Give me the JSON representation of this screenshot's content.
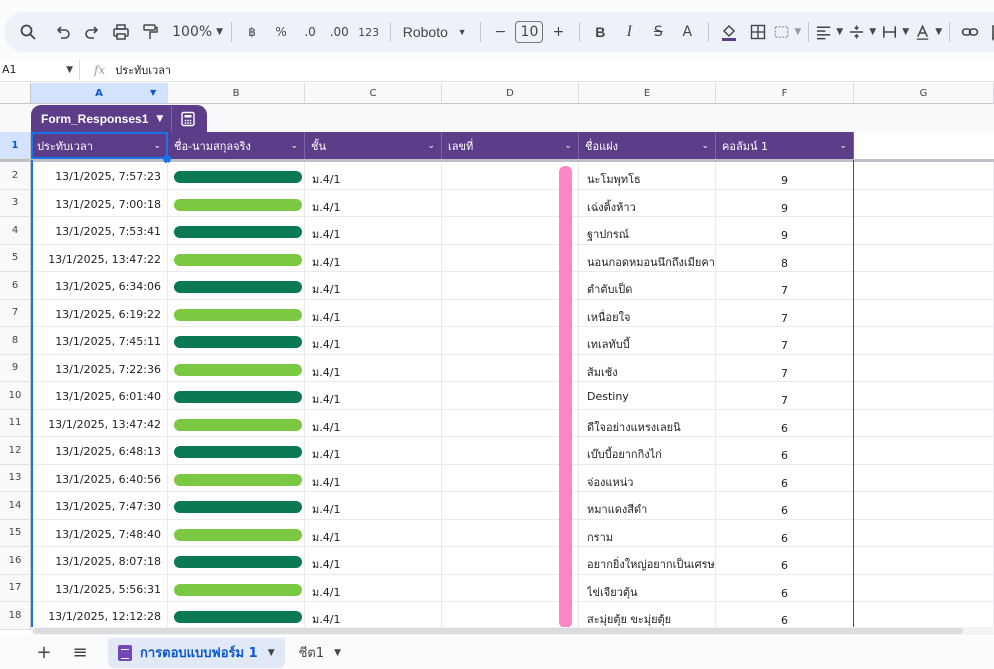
{
  "toolbar": {
    "zoom": "100%",
    "currency": "฿",
    "percent": "%",
    "decrease_decimal": ".0",
    "increase_decimal": ".00",
    "number_format": "123",
    "font": "Roboto",
    "font_size": "10",
    "minus": "−",
    "plus": "+",
    "bold": "B",
    "italic": "I",
    "strike": "S",
    "text_color": "A"
  },
  "formula_bar": {
    "cell_ref": "A1",
    "fx": "fx",
    "value": "ประทับเวลา"
  },
  "columns": [
    "A",
    "B",
    "C",
    "D",
    "E",
    "F",
    "G"
  ],
  "table": {
    "name": "Form_Responses1",
    "headers": [
      "ประทับเวลา",
      "ชื่อ-นามสกุลจริง",
      "ชั้น",
      "เลขที่",
      "ชื่อแฝง",
      "คอลัมน์ 1"
    ]
  },
  "rows": [
    {
      "num": "1"
    },
    {
      "num": "2",
      "time": "13/1/2025, 7:57:23",
      "grade": "ม.4/1",
      "alias": "นะโมพุทโธ",
      "score": "9",
      "pill": "dark"
    },
    {
      "num": "3",
      "time": "13/1/2025, 7:00:18",
      "grade": "ม.4/1",
      "alias": "เฉ่งติ้งห้าว",
      "score": "9",
      "pill": "light"
    },
    {
      "num": "4",
      "time": "13/1/2025, 7:53:41",
      "grade": "ม.4/1",
      "alias": "ฐาปกรณ์",
      "score": "9",
      "pill": "dark"
    },
    {
      "num": "5",
      "time": "13/1/2025, 13:47:22",
      "grade": "ม.4/1",
      "alias": "นอนกอดหมอนนึกถึงเมียคา",
      "score": "8",
      "pill": "light"
    },
    {
      "num": "6",
      "time": "13/1/2025, 6:34:06",
      "grade": "ม.4/1",
      "alias": "ตำตับเป็ด",
      "score": "7",
      "pill": "dark"
    },
    {
      "num": "7",
      "time": "13/1/2025, 6:19:22",
      "grade": "ม.4/1",
      "alias": "เหนื่อยใจ",
      "score": "7",
      "pill": "light"
    },
    {
      "num": "8",
      "time": "13/1/2025, 7:45:11",
      "grade": "ม.4/1",
      "alias": "เทเลทับบี้",
      "score": "7",
      "pill": "dark"
    },
    {
      "num": "9",
      "time": "13/1/2025, 7:22:36",
      "grade": "ม.4/1",
      "alias": "ส้มเช้ง",
      "score": "7",
      "pill": "light"
    },
    {
      "num": "10",
      "time": "13/1/2025, 6:01:40",
      "grade": "ม.4/1",
      "alias": "Destiny",
      "score": "7",
      "pill": "dark"
    },
    {
      "num": "11",
      "time": "13/1/2025, 13:47:42",
      "grade": "ม.4/1",
      "alias": "ดีใจอย่างแหรงเลยนิ",
      "score": "6",
      "pill": "light"
    },
    {
      "num": "12",
      "time": "13/1/2025, 6:48:13",
      "grade": "ม.4/1",
      "alias": "เบ๊บบี้อยากกิงไก่",
      "score": "6",
      "pill": "dark"
    },
    {
      "num": "13",
      "time": "13/1/2025, 6:40:56",
      "grade": "ม.4/1",
      "alias": "จ่องแหน่ว",
      "score": "6",
      "pill": "light"
    },
    {
      "num": "14",
      "time": "13/1/2025, 7:47:30",
      "grade": "ม.4/1",
      "alias": "หมาแดงสีดำ",
      "score": "6",
      "pill": "dark"
    },
    {
      "num": "15",
      "time": "13/1/2025, 7:48:40",
      "grade": "ม.4/1",
      "alias": "กราม",
      "score": "6",
      "pill": "light"
    },
    {
      "num": "16",
      "time": "13/1/2025, 8:07:18",
      "grade": "ม.4/1",
      "alias": "อยากยิ่งใหญ่อยากเป็นเศรษ",
      "score": "6",
      "pill": "dark"
    },
    {
      "num": "17",
      "time": "13/1/2025, 5:56:31",
      "grade": "ม.4/1",
      "alias": "ไข่เจียวตุ้น",
      "score": "6",
      "pill": "light"
    },
    {
      "num": "18",
      "time": "13/1/2025, 12:12:28",
      "grade": "ม.4/1",
      "alias": "สะมุ่ยตุ้ย ขะมุ่ยตุ้ย",
      "score": "6",
      "pill": "dark"
    }
  ],
  "sheet_tabs": {
    "add": "+",
    "all": "≡",
    "tabs": [
      "การตอบแบบฟอร์ม 1",
      "ชีต1"
    ]
  },
  "colors": {
    "table_header": "#5b3d8a",
    "pill_dark": "#0b7a52",
    "pill_light": "#7bc843",
    "redaction": "#ff85c8",
    "selection": "#1a73e8"
  }
}
